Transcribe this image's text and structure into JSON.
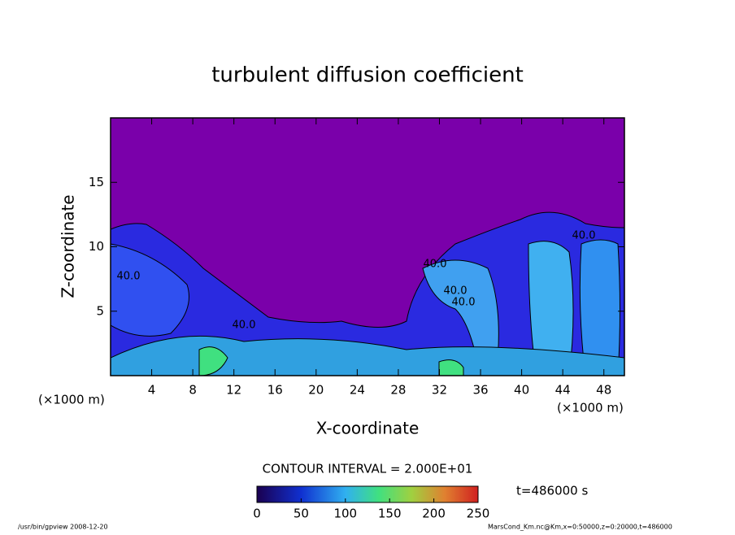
{
  "chart_data": {
    "type": "heatmap",
    "title": "turbulent diffusion coefficient",
    "x_label": "X-coordinate",
    "y_label": "Z-coordinate",
    "x_unit": "(×1000 m)",
    "y_unit": "(×1000 m)",
    "xlim": [
      0,
      50
    ],
    "ylim": [
      0,
      20
    ],
    "xticks": [
      4,
      8,
      12,
      16,
      20,
      24,
      28,
      32,
      36,
      40,
      44,
      48
    ],
    "yticks": [
      5,
      10,
      15
    ],
    "contour_interval": "CONTOUR INTERVAL = 2.000E+01",
    "contour_labels": [
      "40.0",
      "40.0",
      "40.0",
      "40.0",
      "40.0",
      "40.0"
    ],
    "colorbar": {
      "lim": [
        0,
        250
      ],
      "ticks": [
        0,
        50,
        100,
        150,
        200,
        250
      ]
    },
    "time_label": "t=486000 s",
    "footer_left": "/usr/bin/gpview   2008-12-20",
    "footer_right": "MarsCond_Km.nc@Km,x=0:50000,z=0:20000,t=486000"
  }
}
